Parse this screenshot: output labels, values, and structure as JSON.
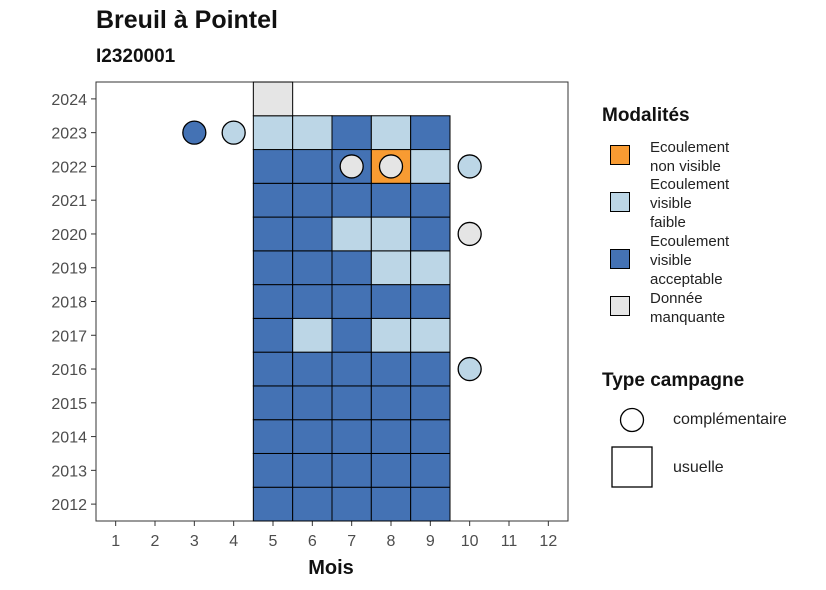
{
  "chart_data": {
    "type": "heatmap",
    "title": "Breuil à Pointel",
    "subtitle": "I2320001",
    "xlabel": "Mois",
    "ylabel": "",
    "x_ticks": [
      "1",
      "2",
      "3",
      "4",
      "5",
      "6",
      "7",
      "8",
      "9",
      "10",
      "11",
      "12"
    ],
    "y_ticks": [
      "2012",
      "2013",
      "2014",
      "2015",
      "2016",
      "2017",
      "2018",
      "2019",
      "2020",
      "2021",
      "2022",
      "2023",
      "2024"
    ],
    "xlim": [
      0.5,
      12.5
    ],
    "ylim": [
      2011.5,
      2024.5
    ],
    "grid": false,
    "legend_position": "right",
    "colors": {
      "Ecoulement non visible": "#F89B32",
      "Ecoulement visible faible": "#BCD6E6",
      "Ecoulement visible acceptable": "#4472B4",
      "Donnée manquante": "#E5E5E5"
    },
    "series": [
      {
        "name": "usuelle",
        "shape": "square",
        "points": [
          {
            "year": 2012,
            "month": 5,
            "modalite": "Ecoulement visible acceptable"
          },
          {
            "year": 2012,
            "month": 6,
            "modalite": "Ecoulement visible acceptable"
          },
          {
            "year": 2012,
            "month": 7,
            "modalite": "Ecoulement visible acceptable"
          },
          {
            "year": 2012,
            "month": 8,
            "modalite": "Ecoulement visible acceptable"
          },
          {
            "year": 2012,
            "month": 9,
            "modalite": "Ecoulement visible acceptable"
          },
          {
            "year": 2013,
            "month": 5,
            "modalite": "Ecoulement visible acceptable"
          },
          {
            "year": 2013,
            "month": 6,
            "modalite": "Ecoulement visible acceptable"
          },
          {
            "year": 2013,
            "month": 7,
            "modalite": "Ecoulement visible acceptable"
          },
          {
            "year": 2013,
            "month": 8,
            "modalite": "Ecoulement visible acceptable"
          },
          {
            "year": 2013,
            "month": 9,
            "modalite": "Ecoulement visible acceptable"
          },
          {
            "year": 2014,
            "month": 5,
            "modalite": "Ecoulement visible acceptable"
          },
          {
            "year": 2014,
            "month": 6,
            "modalite": "Ecoulement visible acceptable"
          },
          {
            "year": 2014,
            "month": 7,
            "modalite": "Ecoulement visible acceptable"
          },
          {
            "year": 2014,
            "month": 8,
            "modalite": "Ecoulement visible acceptable"
          },
          {
            "year": 2014,
            "month": 9,
            "modalite": "Ecoulement visible acceptable"
          },
          {
            "year": 2015,
            "month": 5,
            "modalite": "Ecoulement visible acceptable"
          },
          {
            "year": 2015,
            "month": 6,
            "modalite": "Ecoulement visible acceptable"
          },
          {
            "year": 2015,
            "month": 7,
            "modalite": "Ecoulement visible acceptable"
          },
          {
            "year": 2015,
            "month": 8,
            "modalite": "Ecoulement visible acceptable"
          },
          {
            "year": 2015,
            "month": 9,
            "modalite": "Ecoulement visible acceptable"
          },
          {
            "year": 2016,
            "month": 5,
            "modalite": "Ecoulement visible acceptable"
          },
          {
            "year": 2016,
            "month": 6,
            "modalite": "Ecoulement visible acceptable"
          },
          {
            "year": 2016,
            "month": 7,
            "modalite": "Ecoulement visible acceptable"
          },
          {
            "year": 2016,
            "month": 8,
            "modalite": "Ecoulement visible acceptable"
          },
          {
            "year": 2016,
            "month": 9,
            "modalite": "Ecoulement visible acceptable"
          },
          {
            "year": 2017,
            "month": 5,
            "modalite": "Ecoulement visible acceptable"
          },
          {
            "year": 2017,
            "month": 6,
            "modalite": "Ecoulement visible faible"
          },
          {
            "year": 2017,
            "month": 7,
            "modalite": "Ecoulement visible acceptable"
          },
          {
            "year": 2017,
            "month": 8,
            "modalite": "Ecoulement visible faible"
          },
          {
            "year": 2017,
            "month": 9,
            "modalite": "Ecoulement visible faible"
          },
          {
            "year": 2018,
            "month": 5,
            "modalite": "Ecoulement visible acceptable"
          },
          {
            "year": 2018,
            "month": 6,
            "modalite": "Ecoulement visible acceptable"
          },
          {
            "year": 2018,
            "month": 7,
            "modalite": "Ecoulement visible acceptable"
          },
          {
            "year": 2018,
            "month": 8,
            "modalite": "Ecoulement visible acceptable"
          },
          {
            "year": 2018,
            "month": 9,
            "modalite": "Ecoulement visible acceptable"
          },
          {
            "year": 2019,
            "month": 5,
            "modalite": "Ecoulement visible acceptable"
          },
          {
            "year": 2019,
            "month": 6,
            "modalite": "Ecoulement visible acceptable"
          },
          {
            "year": 2019,
            "month": 7,
            "modalite": "Ecoulement visible acceptable"
          },
          {
            "year": 2019,
            "month": 8,
            "modalite": "Ecoulement visible faible"
          },
          {
            "year": 2019,
            "month": 9,
            "modalite": "Ecoulement visible faible"
          },
          {
            "year": 2020,
            "month": 5,
            "modalite": "Ecoulement visible acceptable"
          },
          {
            "year": 2020,
            "month": 6,
            "modalite": "Ecoulement visible acceptable"
          },
          {
            "year": 2020,
            "month": 7,
            "modalite": "Ecoulement visible faible"
          },
          {
            "year": 2020,
            "month": 8,
            "modalite": "Ecoulement visible faible"
          },
          {
            "year": 2020,
            "month": 9,
            "modalite": "Ecoulement visible acceptable"
          },
          {
            "year": 2021,
            "month": 5,
            "modalite": "Ecoulement visible acceptable"
          },
          {
            "year": 2021,
            "month": 6,
            "modalite": "Ecoulement visible acceptable"
          },
          {
            "year": 2021,
            "month": 7,
            "modalite": "Ecoulement visible acceptable"
          },
          {
            "year": 2021,
            "month": 8,
            "modalite": "Ecoulement visible acceptable"
          },
          {
            "year": 2021,
            "month": 9,
            "modalite": "Ecoulement visible acceptable"
          },
          {
            "year": 2022,
            "month": 5,
            "modalite": "Ecoulement visible acceptable"
          },
          {
            "year": 2022,
            "month": 6,
            "modalite": "Ecoulement visible acceptable"
          },
          {
            "year": 2022,
            "month": 7,
            "modalite": "Ecoulement visible acceptable"
          },
          {
            "year": 2022,
            "month": 8,
            "modalite": "Ecoulement non visible"
          },
          {
            "year": 2022,
            "month": 9,
            "modalite": "Ecoulement visible faible"
          },
          {
            "year": 2023,
            "month": 5,
            "modalite": "Ecoulement visible faible"
          },
          {
            "year": 2023,
            "month": 6,
            "modalite": "Ecoulement visible faible"
          },
          {
            "year": 2023,
            "month": 7,
            "modalite": "Ecoulement visible acceptable"
          },
          {
            "year": 2023,
            "month": 8,
            "modalite": "Ecoulement visible faible"
          },
          {
            "year": 2023,
            "month": 9,
            "modalite": "Ecoulement visible acceptable"
          },
          {
            "year": 2024,
            "month": 5,
            "modalite": "Donnée manquante"
          }
        ]
      },
      {
        "name": "complémentaire",
        "shape": "circle",
        "points": [
          {
            "year": 2023,
            "month": 3,
            "modalite": "Ecoulement visible acceptable"
          },
          {
            "year": 2023,
            "month": 4,
            "modalite": "Ecoulement visible faible"
          },
          {
            "year": 2022,
            "month": 7,
            "modalite": "Donnée manquante"
          },
          {
            "year": 2022,
            "month": 8,
            "modalite": "Donnée manquante"
          },
          {
            "year": 2022,
            "month": 10,
            "modalite": "Ecoulement visible faible"
          },
          {
            "year": 2020,
            "month": 10,
            "modalite": "Donnée manquante"
          },
          {
            "year": 2016,
            "month": 10,
            "modalite": "Ecoulement visible faible"
          }
        ]
      }
    ],
    "legend": {
      "fill_title": "Modalités",
      "fill_entries": [
        {
          "key": "Ecoulement non visible",
          "lines": [
            "Ecoulement",
            "non visible"
          ]
        },
        {
          "key": "Ecoulement visible faible",
          "lines": [
            "Ecoulement",
            "visible",
            "faible"
          ]
        },
        {
          "key": "Ecoulement visible acceptable",
          "lines": [
            "Ecoulement",
            "visible",
            "acceptable"
          ]
        },
        {
          "key": "Donnée manquante",
          "lines": [
            "Donnée",
            "manquante"
          ]
        }
      ],
      "shape_title": "Type campagne",
      "shape_entries": [
        {
          "shape": "circle",
          "label": "complémentaire"
        },
        {
          "shape": "square",
          "label": "usuelle"
        }
      ]
    }
  }
}
